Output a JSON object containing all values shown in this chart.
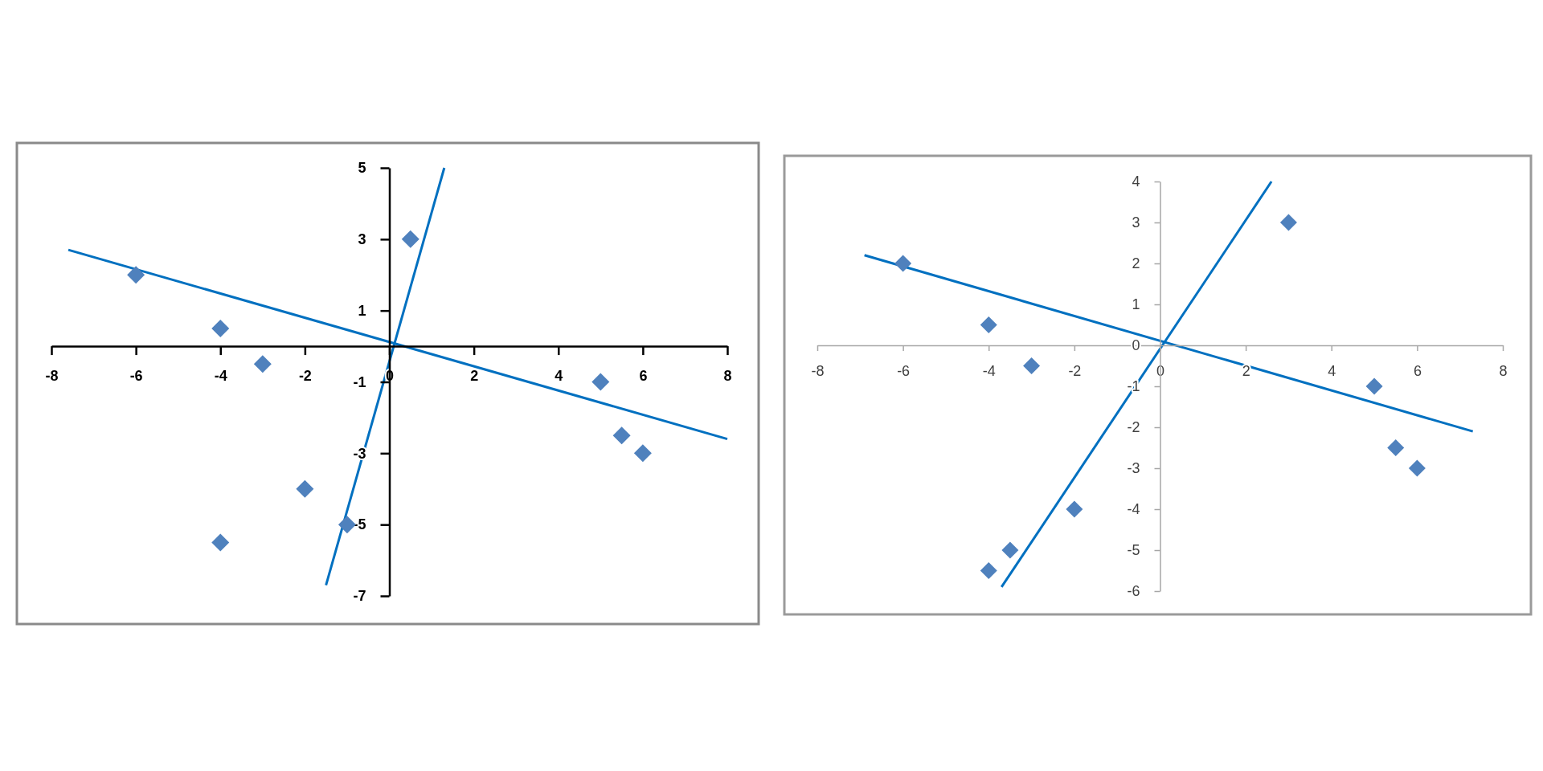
{
  "chart_data": [
    {
      "type": "scatter",
      "xlim": [
        -8,
        8
      ],
      "ylim": [
        -7,
        5
      ],
      "xticks": [
        -8,
        -6,
        -4,
        -2,
        0,
        2,
        4,
        6,
        8
      ],
      "yticks": [
        -7,
        -5,
        -3,
        -1,
        1,
        3,
        5
      ],
      "marker": "diamond",
      "series": [
        {
          "color": "#4f81bd",
          "x": [
            -6,
            -4,
            -3,
            -2,
            -4,
            -1,
            0.5,
            5,
            5.5,
            6
          ],
          "values": [
            2,
            0.5,
            -0.5,
            -4,
            -5.5,
            -5,
            3,
            -1,
            -2.5,
            -3
          ]
        },
        {
          "type": "line",
          "color": "#0070c0",
          "marker": "none",
          "x": [
            -7.6,
            8
          ],
          "values": [
            2.7,
            -2.6
          ]
        },
        {
          "type": "line",
          "color": "#0070c0",
          "marker": "none",
          "x": [
            -1.5,
            1.3
          ],
          "values": [
            -6.7,
            5
          ]
        }
      ]
    },
    {
      "type": "scatter",
      "xlim": [
        -8,
        8
      ],
      "ylim": [
        -6,
        4
      ],
      "xticks": [
        -8,
        -6,
        -4,
        -2,
        0,
        2,
        4,
        6,
        8
      ],
      "yticks": [
        -6,
        -5,
        -4,
        -3,
        -2,
        -1,
        0,
        1,
        2,
        3,
        4
      ],
      "marker": "diamond",
      "series": [
        {
          "color": "#4f81bd",
          "x": [
            -6,
            -4,
            -3,
            -2,
            -3.5,
            -4,
            3,
            5,
            5.5,
            6
          ],
          "values": [
            2,
            0.5,
            -0.5,
            -4,
            -5,
            -5.5,
            3,
            -1,
            -2.5,
            -3
          ]
        },
        {
          "type": "line",
          "color": "#0070c0",
          "marker": "none",
          "x": [
            -6.9,
            7.3
          ],
          "values": [
            2.2,
            -2.1
          ]
        },
        {
          "type": "line",
          "color": "#0070c0",
          "marker": "none",
          "x": [
            -3.7,
            2.6
          ],
          "values": [
            -5.9,
            4
          ]
        }
      ]
    }
  ]
}
